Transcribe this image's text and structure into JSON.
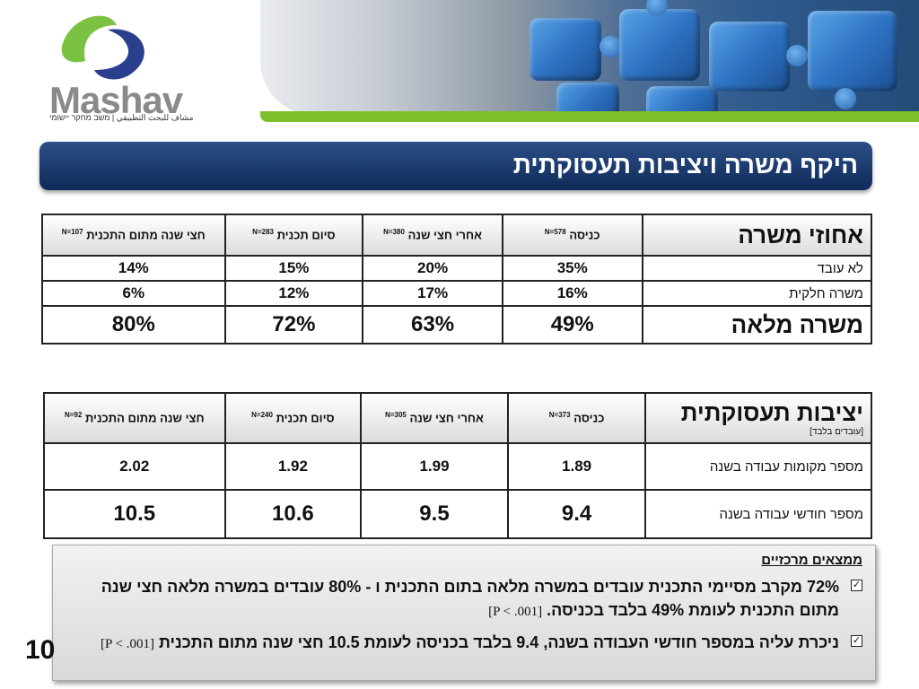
{
  "logo": {
    "name": "Mashav",
    "subtitle": "مشاف للبحث التطبيقي | משב מחקר יישומי"
  },
  "title": "היקף משרה ויציבות תעסוקתית",
  "table1": {
    "corner": "אחוזי משרה",
    "headers": [
      {
        "label": "כניסה",
        "n": "N=578"
      },
      {
        "label": "אחרי חצי שנה",
        "n": "N=380"
      },
      {
        "label": "סיום תכנית",
        "n": "N=283"
      },
      {
        "label": "חצי שנה מתום התכנית",
        "n": "N=107"
      }
    ],
    "rows": [
      {
        "label": "לא עובד",
        "values": [
          "35%",
          "20%",
          "15%",
          "14%"
        ]
      },
      {
        "label": "משרה חלקית",
        "values": [
          "16%",
          "17%",
          "12%",
          "6%"
        ]
      },
      {
        "label": "משרה מלאה",
        "values": [
          "49%",
          "63%",
          "72%",
          "80%"
        ]
      }
    ]
  },
  "table2": {
    "corner": "יציבות תעסוקתית",
    "corner_sub": "[עובדים בלבד]",
    "headers": [
      {
        "label": "כניסה",
        "n": "N=373"
      },
      {
        "label": "אחרי חצי שנה",
        "n": "N=305"
      },
      {
        "label": "סיום תכנית",
        "n": "N=240"
      },
      {
        "label": "חצי שנה מתום התכנית",
        "n": "N=92"
      }
    ],
    "rows": [
      {
        "label": "מספר מקומות עבודה בשנה",
        "values": [
          "1.89",
          "1.99",
          "1.92",
          "2.02"
        ]
      },
      {
        "label": "מספר חודשי עבודה בשנה",
        "values": [
          "9.4",
          "9.5",
          "10.6",
          "10.5"
        ]
      }
    ]
  },
  "findings": {
    "title": "ממצאים מרכזיים",
    "items": [
      {
        "text": "72% מקרב מסיימי התכנית עובדים במשרה מלאה בתום התכנית ו - 80% עובדים במשרה מלאה חצי שנה מתום התכנית לעומת 49% בלבד בכניסה.",
        "note": "[P < .001]"
      },
      {
        "text": "ניכרת עליה במספר חודשי העבודה בשנה, 9.4 בלבד בכניסה לעומת 10.5 חצי שנה מתום התכנית",
        "note": "[P < .001]"
      }
    ]
  },
  "page_number": "10"
}
